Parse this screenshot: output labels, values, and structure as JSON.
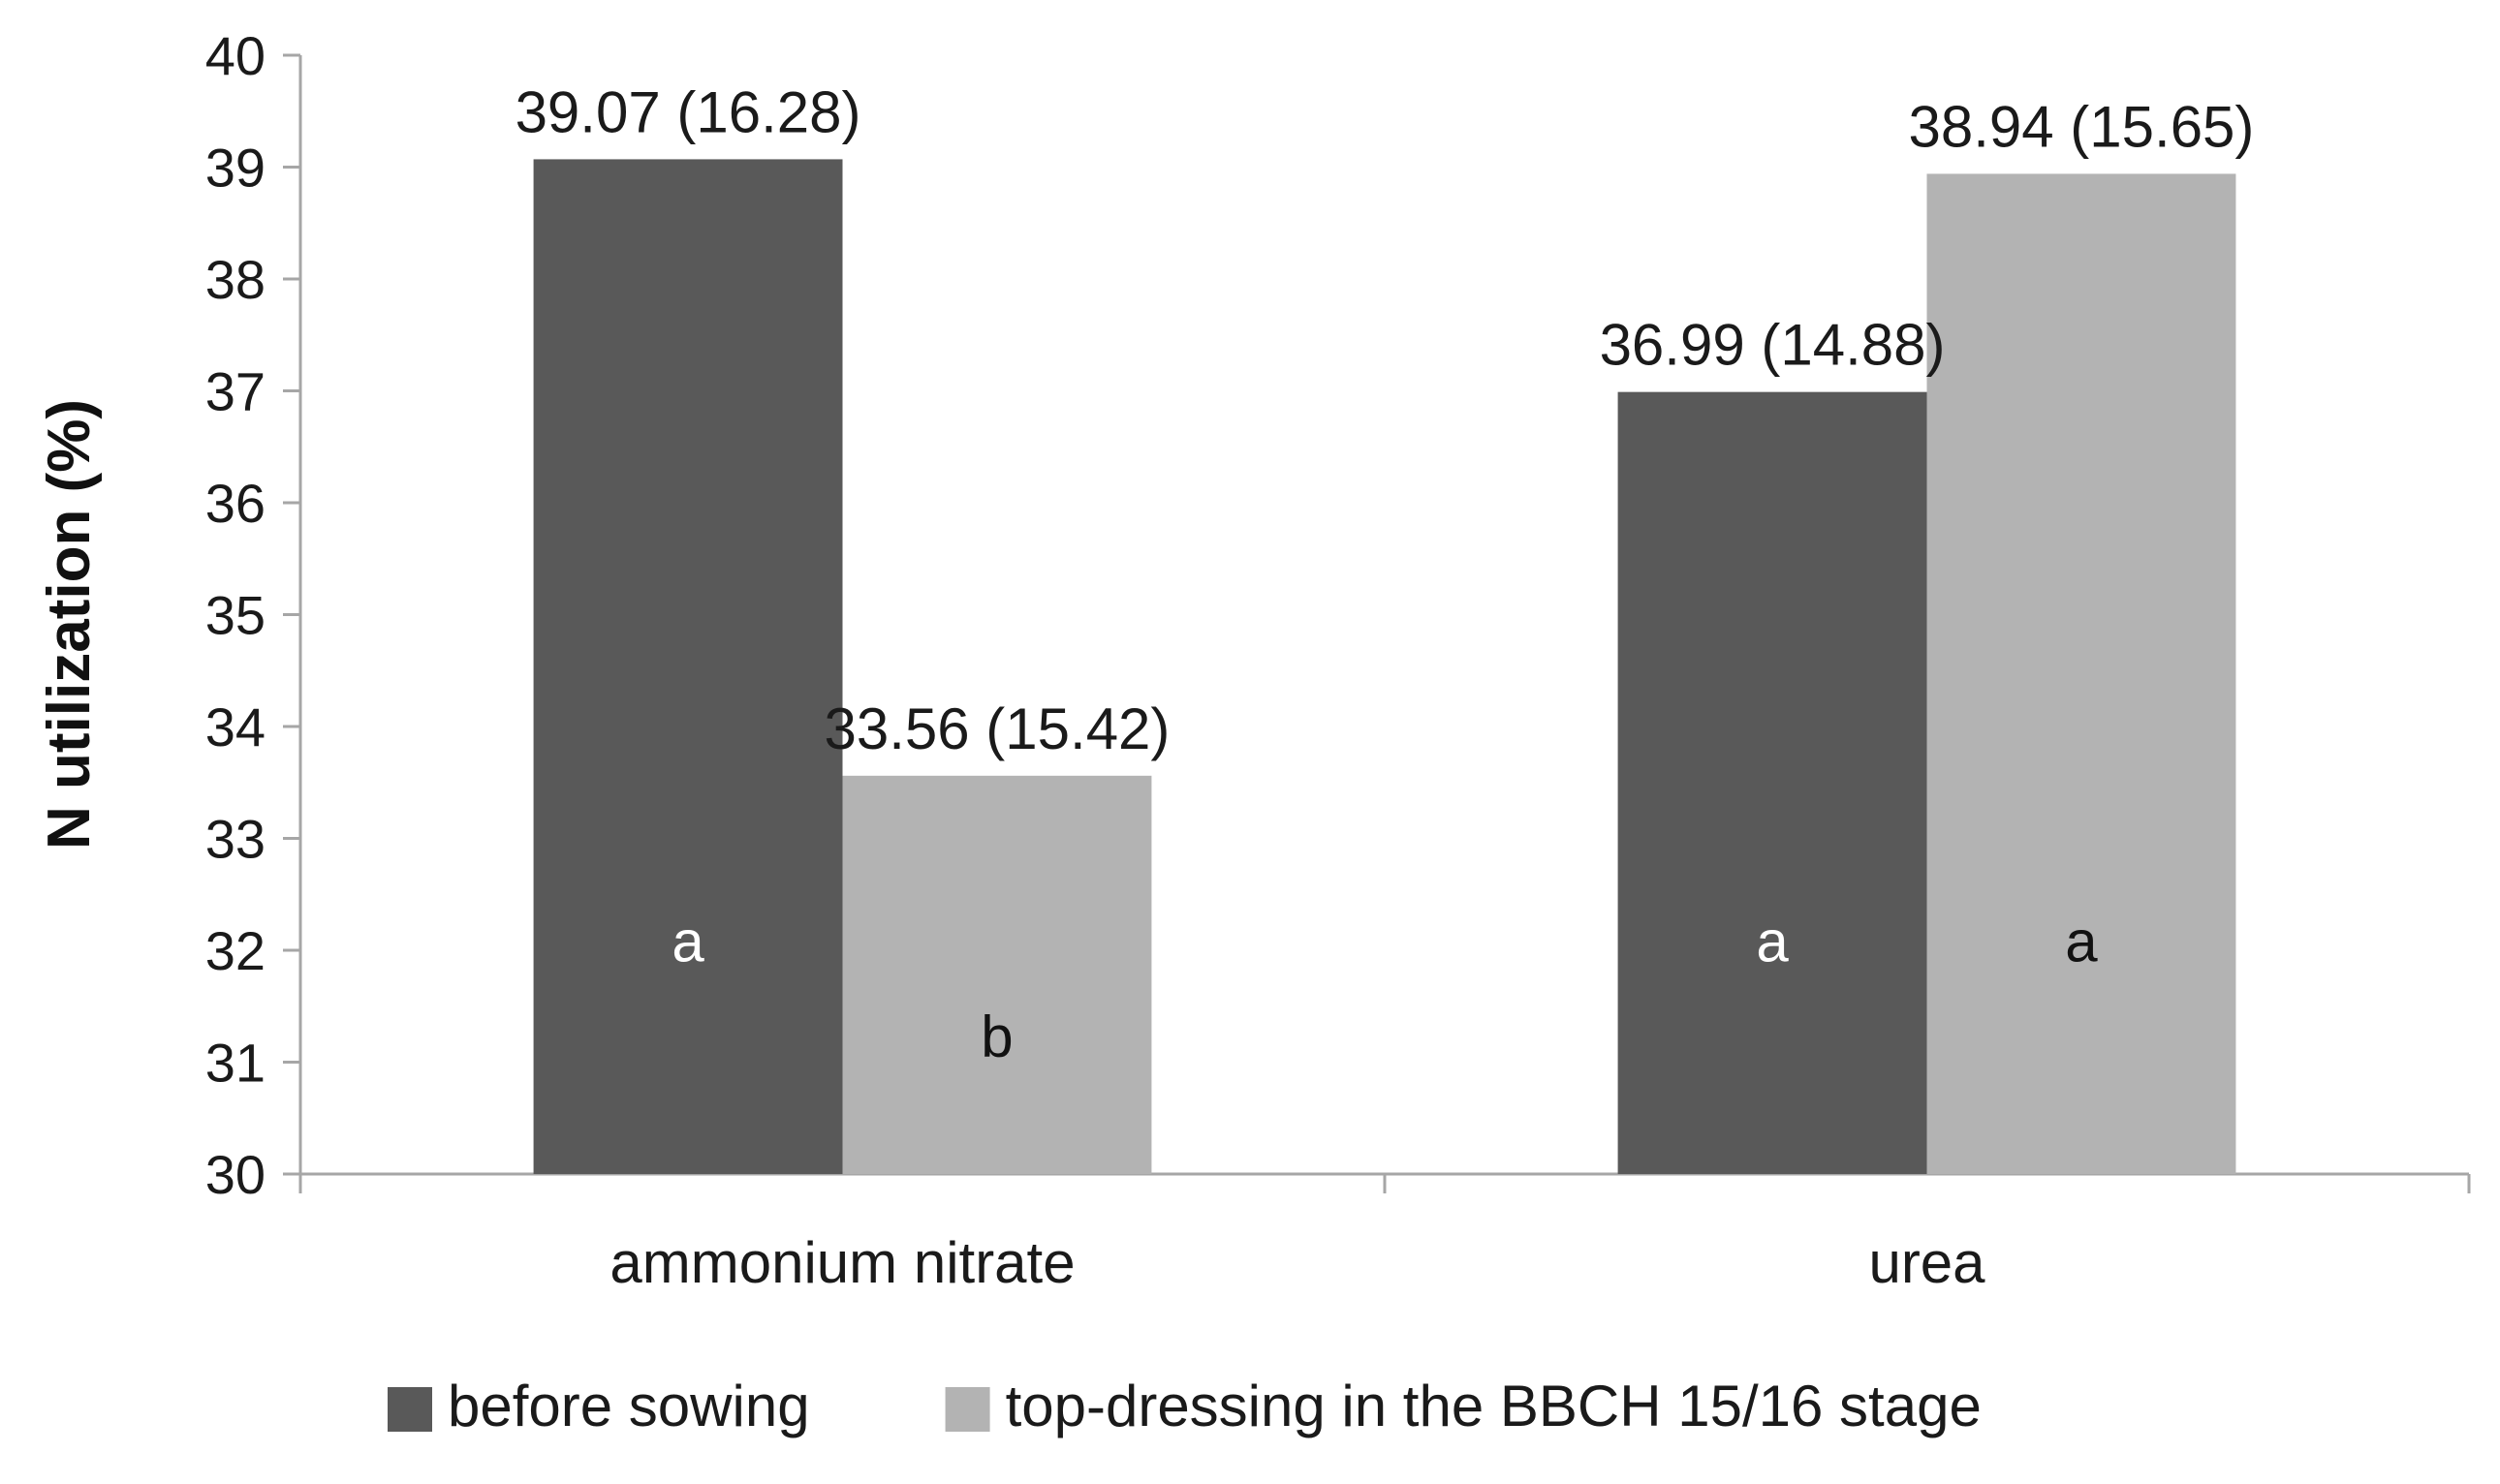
{
  "chart_data": {
    "type": "bar",
    "title": "",
    "xlabel": "",
    "ylabel": "N utilization (%)",
    "ylim": [
      30,
      40
    ],
    "yticks": [
      30,
      31,
      32,
      33,
      34,
      35,
      36,
      37,
      38,
      39,
      40
    ],
    "categories": [
      "ammonium nitrate",
      "urea"
    ],
    "series": [
      {
        "name": "before sowing",
        "color": "#595959",
        "values": [
          39.07,
          36.99
        ],
        "data_labels": [
          "39.07 (16.28)",
          "36.99 (14.88)"
        ],
        "significance": [
          "a",
          "a"
        ],
        "significance_color": "#ffffff"
      },
      {
        "name": "top-dressing in the BBCH 15/16 stage",
        "color": "#b3b3b3",
        "values": [
          33.56,
          38.94
        ],
        "data_labels": [
          "33.56 (15.42)",
          "38.94 (15.65)"
        ],
        "significance": [
          "b",
          "a"
        ],
        "significance_color": "#111111"
      }
    ],
    "grid": false,
    "legend_position": "bottom"
  }
}
